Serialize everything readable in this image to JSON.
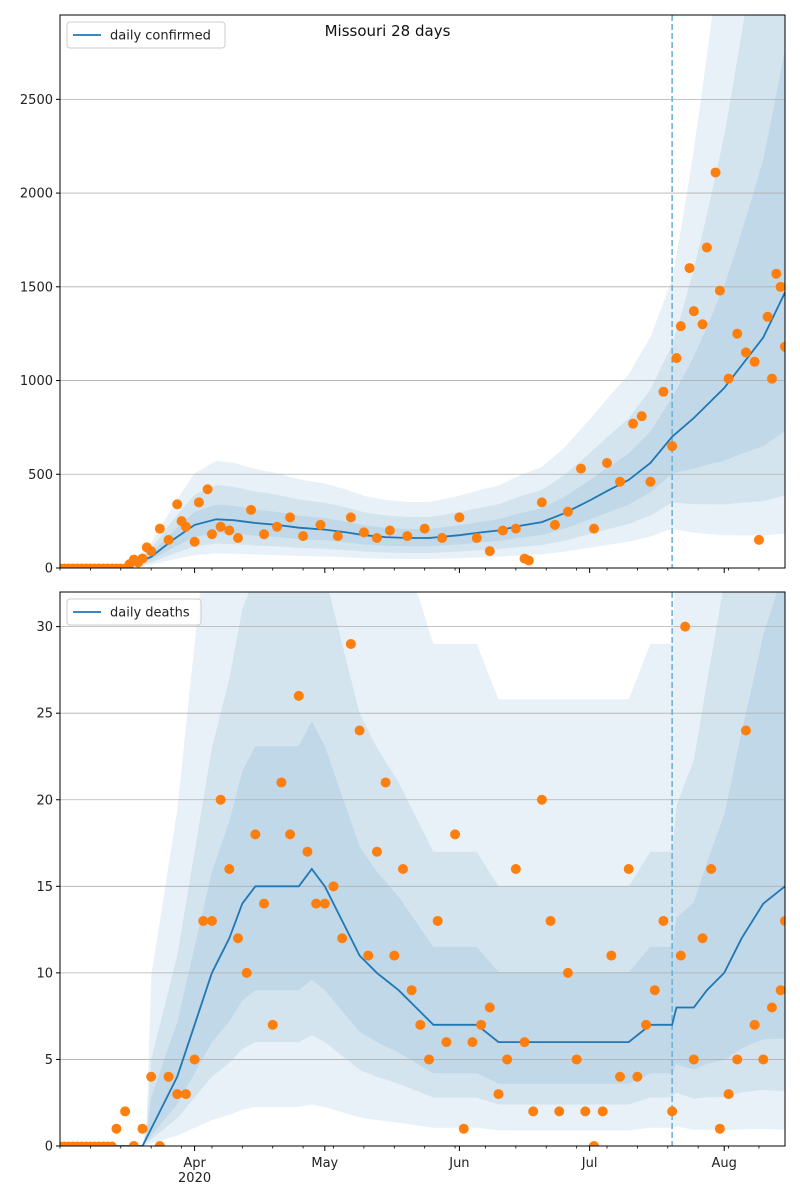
{
  "colors": {
    "line": "#1f77b4",
    "points": "#ff7f0e",
    "band": "#1f77b4",
    "grid": "#b0b0b0",
    "divider": "#6aaed6"
  },
  "chart_data": [
    {
      "type": "line",
      "title": "Missouri 28 days",
      "legend": {
        "label": "daily confirmed",
        "position": "top-left"
      },
      "xlim": [
        "2020-03-01",
        "2020-08-15"
      ],
      "ylim": [
        0,
        2950
      ],
      "yticks": [
        0,
        500,
        1000,
        1500,
        2000,
        2500
      ],
      "grid": "y",
      "forecast_start": "2020-07-20",
      "series": [
        {
          "kind": "line",
          "x": [
            "2020-03-01",
            "2020-03-10",
            "2020-03-15",
            "2020-03-18",
            "2020-03-22",
            "2020-03-27",
            "2020-04-01",
            "2020-04-06",
            "2020-04-10",
            "2020-04-15",
            "2020-04-20",
            "2020-04-25",
            "2020-05-01",
            "2020-05-06",
            "2020-05-10",
            "2020-05-15",
            "2020-05-20",
            "2020-05-25",
            "2020-06-01",
            "2020-06-06",
            "2020-06-10",
            "2020-06-15",
            "2020-06-20",
            "2020-06-25",
            "2020-07-01",
            "2020-07-05",
            "2020-07-10",
            "2020-07-15",
            "2020-07-20",
            "2020-07-25",
            "2020-08-01",
            "2020-08-05",
            "2020-08-10",
            "2020-08-15"
          ],
          "y": [
            0,
            0,
            5,
            20,
            60,
            150,
            230,
            260,
            255,
            240,
            230,
            215,
            205,
            190,
            175,
            165,
            160,
            160,
            175,
            190,
            200,
            225,
            245,
            290,
            360,
            410,
            470,
            560,
            700,
            800,
            960,
            1080,
            1230,
            1470
          ]
        },
        {
          "kind": "scatter",
          "x": [
            "2020-03-17",
            "2020-03-18",
            "2020-03-19",
            "2020-03-20",
            "2020-03-21",
            "2020-03-22",
            "2020-03-24",
            "2020-03-26",
            "2020-03-28",
            "2020-03-29",
            "2020-03-30",
            "2020-04-01",
            "2020-04-02",
            "2020-04-04",
            "2020-04-05",
            "2020-04-07",
            "2020-04-09",
            "2020-04-11",
            "2020-04-14",
            "2020-04-17",
            "2020-04-20",
            "2020-04-23",
            "2020-04-26",
            "2020-04-30",
            "2020-05-04",
            "2020-05-07",
            "2020-05-10",
            "2020-05-13",
            "2020-05-16",
            "2020-05-20",
            "2020-05-24",
            "2020-05-28",
            "2020-06-01",
            "2020-06-05",
            "2020-06-08",
            "2020-06-11",
            "2020-06-14",
            "2020-06-16",
            "2020-06-17",
            "2020-06-20",
            "2020-06-23",
            "2020-06-26",
            "2020-06-29",
            "2020-07-02",
            "2020-07-05",
            "2020-07-08",
            "2020-07-11",
            "2020-07-13",
            "2020-07-15",
            "2020-07-18",
            "2020-07-20",
            "2020-07-21",
            "2020-07-22",
            "2020-07-24",
            "2020-07-25",
            "2020-07-27",
            "2020-07-28",
            "2020-07-30",
            "2020-07-31",
            "2020-08-02",
            "2020-08-04",
            "2020-08-06",
            "2020-08-08",
            "2020-08-09",
            "2020-08-11",
            "2020-08-12",
            "2020-08-13",
            "2020-08-14",
            "2020-08-15"
          ],
          "y": [
            20,
            45,
            30,
            50,
            110,
            90,
            210,
            150,
            340,
            250,
            220,
            140,
            350,
            420,
            180,
            220,
            200,
            160,
            310,
            180,
            220,
            270,
            170,
            230,
            170,
            270,
            190,
            160,
            200,
            170,
            210,
            160,
            270,
            160,
            90,
            200,
            210,
            50,
            40,
            350,
            230,
            300,
            530,
            210,
            560,
            460,
            770,
            810,
            460,
            940,
            650,
            1120,
            1290,
            1600,
            1370,
            1300,
            1710,
            2110,
            1480,
            1010,
            1250,
            1150,
            1100,
            150,
            1340,
            1010,
            1570,
            1500,
            1180
          ]
        }
      ]
    },
    {
      "type": "line",
      "legend": {
        "label": "daily deaths",
        "position": "top-left"
      },
      "xlim": [
        "2020-03-01",
        "2020-08-15"
      ],
      "ylim": [
        0,
        32
      ],
      "yticks": [
        0,
        5,
        10,
        15,
        20,
        25,
        30
      ],
      "grid": "y",
      "xticks_major": [
        {
          "date": "2020-04-01",
          "label": "Apr",
          "sublabel": "2020"
        },
        {
          "date": "2020-05-01",
          "label": "May"
        },
        {
          "date": "2020-06-01",
          "label": "Jun"
        },
        {
          "date": "2020-07-01",
          "label": "Jul"
        },
        {
          "date": "2020-08-01",
          "label": "Aug"
        }
      ],
      "forecast_start": "2020-07-20",
      "series": [
        {
          "kind": "line",
          "x": [
            "2020-03-01",
            "2020-03-20",
            "2020-03-24",
            "2020-03-28",
            "2020-04-01",
            "2020-04-05",
            "2020-04-09",
            "2020-04-12",
            "2020-04-15",
            "2020-04-20",
            "2020-04-25",
            "2020-04-28",
            "2020-05-01",
            "2020-05-05",
            "2020-05-09",
            "2020-05-13",
            "2020-05-18",
            "2020-05-22",
            "2020-05-26",
            "2020-06-01",
            "2020-06-05",
            "2020-06-10",
            "2020-06-15",
            "2020-06-20",
            "2020-06-25",
            "2020-07-01",
            "2020-07-05",
            "2020-07-10",
            "2020-07-15",
            "2020-07-20",
            "2020-07-21",
            "2020-07-25",
            "2020-07-28",
            "2020-08-01",
            "2020-08-05",
            "2020-08-10",
            "2020-08-15"
          ],
          "y": [
            0,
            0,
            2,
            4,
            7,
            10,
            12,
            14,
            15,
            15,
            15,
            16,
            15,
            13,
            11,
            10,
            9,
            8,
            7,
            7,
            7,
            6,
            6,
            6,
            6,
            6,
            6,
            6,
            7,
            7,
            8,
            8,
            9,
            10,
            12,
            14,
            15
          ]
        },
        {
          "kind": "scatter",
          "x": [
            "2020-03-14",
            "2020-03-16",
            "2020-03-18",
            "2020-03-20",
            "2020-03-22",
            "2020-03-24",
            "2020-03-26",
            "2020-03-28",
            "2020-03-30",
            "2020-04-01",
            "2020-04-03",
            "2020-04-05",
            "2020-04-07",
            "2020-04-09",
            "2020-04-11",
            "2020-04-13",
            "2020-04-15",
            "2020-04-17",
            "2020-04-19",
            "2020-04-21",
            "2020-04-23",
            "2020-04-25",
            "2020-04-27",
            "2020-04-29",
            "2020-05-01",
            "2020-05-03",
            "2020-05-05",
            "2020-05-07",
            "2020-05-09",
            "2020-05-11",
            "2020-05-13",
            "2020-05-15",
            "2020-05-17",
            "2020-05-19",
            "2020-05-21",
            "2020-05-23",
            "2020-05-25",
            "2020-05-27",
            "2020-05-29",
            "2020-05-31",
            "2020-06-02",
            "2020-06-04",
            "2020-06-06",
            "2020-06-08",
            "2020-06-10",
            "2020-06-12",
            "2020-06-14",
            "2020-06-16",
            "2020-06-18",
            "2020-06-20",
            "2020-06-22",
            "2020-06-24",
            "2020-06-26",
            "2020-06-28",
            "2020-06-30",
            "2020-07-02",
            "2020-07-04",
            "2020-07-06",
            "2020-07-08",
            "2020-07-10",
            "2020-07-12",
            "2020-07-14",
            "2020-07-16",
            "2020-07-18",
            "2020-07-20",
            "2020-07-22",
            "2020-07-23",
            "2020-07-25",
            "2020-07-27",
            "2020-07-29",
            "2020-07-31",
            "2020-08-02",
            "2020-08-04",
            "2020-08-06",
            "2020-08-08",
            "2020-08-10",
            "2020-08-12",
            "2020-08-14",
            "2020-08-15"
          ],
          "y": [
            1,
            2,
            0,
            1,
            4,
            0,
            4,
            3,
            3,
            5,
            13,
            13,
            20,
            16,
            12,
            10,
            18,
            14,
            7,
            21,
            18,
            26,
            17,
            14,
            14,
            15,
            12,
            29,
            24,
            11,
            17,
            21,
            11,
            16,
            9,
            7,
            5,
            13,
            6,
            18,
            1,
            6,
            7,
            8,
            3,
            5,
            16,
            6,
            2,
            20,
            13,
            2,
            10,
            5,
            2,
            0,
            2,
            11,
            4,
            16,
            4,
            7,
            9,
            13,
            2,
            11,
            30,
            5,
            12,
            16,
            1,
            3,
            5,
            24,
            7,
            5,
            8,
            9,
            13
          ]
        }
      ]
    }
  ]
}
